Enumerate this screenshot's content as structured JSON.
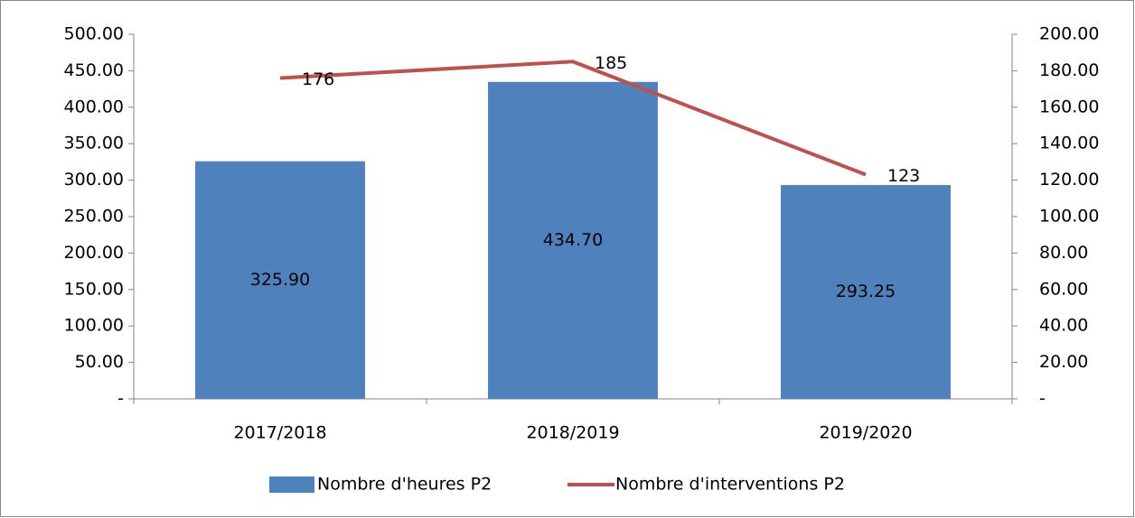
{
  "chart_data": {
    "type": "bar",
    "categories": [
      "2017/2018",
      "2018/2019",
      "2019/2020"
    ],
    "series": [
      {
        "name": "Nombre d'heures P2",
        "type": "bar",
        "color": "#4f81bd",
        "values": [
          325.9,
          434.7,
          293.25
        ],
        "value_labels": [
          "325.90",
          "434.70",
          "293.25"
        ]
      },
      {
        "name": "Nombre d'interventions P2",
        "type": "line",
        "axis": "y2",
        "color": "#c0504d",
        "values": [
          176,
          185,
          123
        ]
      }
    ],
    "ylim": [
      0,
      500
    ],
    "yticks": [
      {
        "value": 0,
        "label": "-"
      },
      {
        "value": 50,
        "label": "50.00"
      },
      {
        "value": 100,
        "label": "100.00"
      },
      {
        "value": 150,
        "label": "150.00"
      },
      {
        "value": 200,
        "label": "200.00"
      },
      {
        "value": 250,
        "label": "250.00"
      },
      {
        "value": 300,
        "label": "300.00"
      },
      {
        "value": 350,
        "label": "350.00"
      },
      {
        "value": 400,
        "label": "400.00"
      },
      {
        "value": 450,
        "label": "450.00"
      },
      {
        "value": 500,
        "label": "500.00"
      }
    ],
    "y2lim": [
      0,
      200
    ],
    "y2ticks": [
      {
        "value": 0,
        "label": "-"
      },
      {
        "value": 20,
        "label": "20.00"
      },
      {
        "value": 40,
        "label": "40.00"
      },
      {
        "value": 60,
        "label": "60.00"
      },
      {
        "value": 80,
        "label": "80.00"
      },
      {
        "value": 100,
        "label": "100.00"
      },
      {
        "value": 120,
        "label": "120.00"
      },
      {
        "value": 140,
        "label": "140.00"
      },
      {
        "value": 160,
        "label": "160.00"
      },
      {
        "value": 180,
        "label": "180.00"
      },
      {
        "value": 200,
        "label": "200.00"
      }
    ],
    "legend": "bottom"
  }
}
